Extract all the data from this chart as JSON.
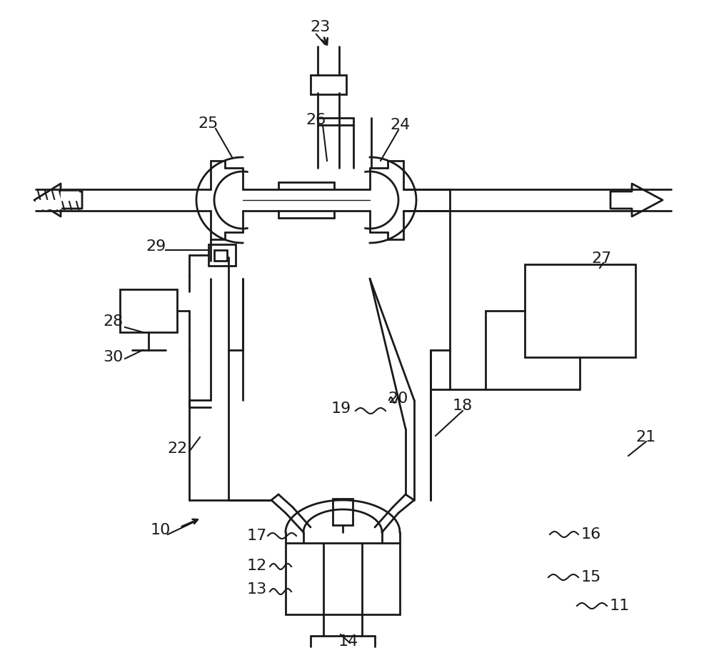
{
  "bg_color": "#ffffff",
  "line_color": "#1a1a1a",
  "lw": 2.0,
  "figsize": [
    10.0,
    9.35
  ],
  "dpi": 100
}
